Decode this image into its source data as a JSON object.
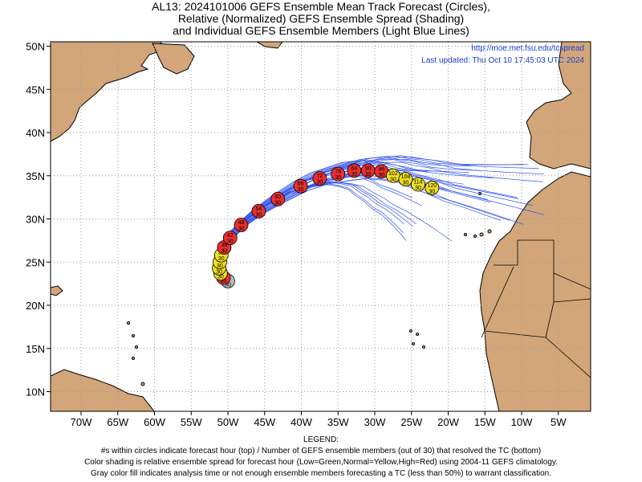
{
  "title": {
    "line1": "AL13: 2024101006 GEFS Ensemble Mean Track Forecast (Circles),",
    "line2": "Relative (Normalized) GEFS Ensemble Spread (Shading)",
    "line3": "and Individual GEFS Ensemble Members (Light Blue Lines)"
  },
  "overlay": {
    "url": "http://moe.met.fsu.edu/tcspread",
    "updated": "Last updated: Thu Oct 10 17:45:03 UTC 2024"
  },
  "axes": {
    "lat_labels": [
      "50N",
      "45N",
      "40N",
      "35N",
      "30N",
      "25N",
      "20N",
      "15N",
      "10N"
    ],
    "lon_labels": [
      "70W",
      "65W",
      "60W",
      "55W",
      "50W",
      "45W",
      "40W",
      "35W",
      "30W",
      "25W",
      "20W",
      "15W",
      "10W",
      "5W"
    ]
  },
  "legend": {
    "heading": "LEGEND:",
    "line1": "#s within circles indicate forecast hour (top) / Number of GEFS ensemble members (out of 30) that resolved the TC (bottom)",
    "line2": "Color shading is relative ensemble spread for forecast hour (Low=Green,Normal=Yellow,High=Red) using 2004-11 GEFS climatology.",
    "line3": "Gray color fill indicates analysis time or not enough ensemble members forecasting a TC (less than 50%) to warrant classification."
  },
  "colors": {
    "land": "#d2a679",
    "ocean": "#ffffff",
    "member_line": "#3355ee",
    "high_spread": "#e83030",
    "normal_spread": "#f0e020",
    "analysis": "#b8b8b8"
  },
  "track_points": [
    {
      "hour": "0",
      "members": "30",
      "spread": "analysis",
      "lon": -50.0,
      "lat": 22.8
    },
    {
      "hour": "6",
      "members": "30",
      "spread": "high",
      "lon": -50.6,
      "lat": 23.2
    },
    {
      "hour": "12",
      "members": "30",
      "spread": "normal",
      "lon": -51.0,
      "lat": 23.7
    },
    {
      "hour": "18",
      "members": "30",
      "spread": "normal",
      "lon": -51.2,
      "lat": 24.3
    },
    {
      "hour": "24",
      "members": "30",
      "spread": "normal",
      "lon": -51.1,
      "lat": 25.0
    },
    {
      "hour": "30",
      "members": "30",
      "spread": "normal",
      "lon": -50.9,
      "lat": 25.8
    },
    {
      "hour": "36",
      "members": "30",
      "spread": "high",
      "lon": -50.5,
      "lat": 26.7
    },
    {
      "hour": "42",
      "members": "30",
      "spread": "high",
      "lon": -49.7,
      "lat": 27.8
    },
    {
      "hour": "48",
      "members": "30",
      "spread": "high",
      "lon": -48.2,
      "lat": 29.3
    },
    {
      "hour": "54",
      "members": "30",
      "spread": "high",
      "lon": -45.8,
      "lat": 30.9
    },
    {
      "hour": "60",
      "members": "30",
      "spread": "high",
      "lon": -43.2,
      "lat": 32.3
    },
    {
      "hour": "66",
      "members": "30",
      "spread": "high",
      "lon": -40.1,
      "lat": 33.8
    },
    {
      "hour": "72",
      "members": "30",
      "spread": "high",
      "lon": -37.5,
      "lat": 34.7
    },
    {
      "hour": "78",
      "members": "30",
      "spread": "high",
      "lon": -35.0,
      "lat": 35.2
    },
    {
      "hour": "84",
      "members": "30",
      "spread": "high",
      "lon": -32.8,
      "lat": 35.6
    },
    {
      "hour": "90",
      "members": "30",
      "spread": "high",
      "lon": -30.9,
      "lat": 35.6
    },
    {
      "hour": "96",
      "members": "30",
      "spread": "high",
      "lon": -29.1,
      "lat": 35.5
    },
    {
      "hour": "102",
      "members": "30",
      "spread": "normal",
      "lon": -27.5,
      "lat": 35.0
    },
    {
      "hour": "108",
      "members": "30",
      "spread": "normal",
      "lon": -25.8,
      "lat": 34.6
    },
    {
      "hour": "114",
      "members": "30",
      "spread": "normal",
      "lon": -24.1,
      "lat": 34.0
    },
    {
      "hour": "120",
      "members": "30",
      "spread": "normal",
      "lon": -22.2,
      "lat": 33.6
    }
  ]
}
